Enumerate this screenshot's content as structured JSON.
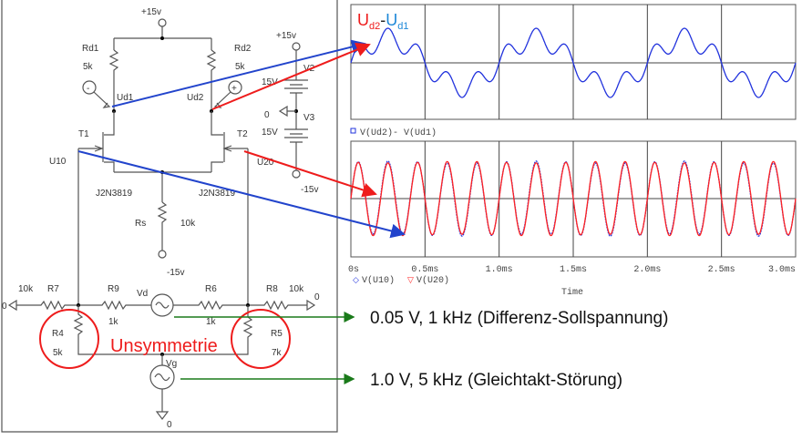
{
  "schematic": {
    "supply_top": "+15v",
    "rd1": {
      "name": "Rd1",
      "value": "5k"
    },
    "rd2": {
      "name": "Rd2",
      "value": "5k"
    },
    "node_ud1": "Ud1",
    "node_ud2": "Ud2",
    "probe_minus": "-",
    "probe_plus": "+",
    "t1": "T1",
    "t2": "T2",
    "u10": "U10",
    "u20": "U20",
    "t1_model": "J2N3819",
    "t2_model": "J2N3819",
    "rs": {
      "name": "Rs",
      "value": "10k"
    },
    "rs_supply": "-15v",
    "v2": {
      "name": "V2",
      "value": "15V",
      "supply": "+15v"
    },
    "v3": {
      "name": "V3",
      "value": "15V",
      "supply": "-15v"
    },
    "gnd_mid": "0",
    "r7": {
      "name": "R7",
      "value": "10k"
    },
    "r9": {
      "name": "R9",
      "value": "1k"
    },
    "vd": "Vd",
    "r6": {
      "name": "R6",
      "value": "1k"
    },
    "r8": {
      "name": "R8",
      "value": "10k"
    },
    "gnd_left": "0",
    "gnd_right": "0",
    "r4": {
      "name": "R4",
      "value": "5k"
    },
    "r5": {
      "name": "R5",
      "value": "7k"
    },
    "vg": "Vg",
    "gnd_bottom": "0",
    "asymmetry_label": "Unsymmetrie"
  },
  "annotations": {
    "vd_note": "0.05 V, 1 kHz (Differenz-Sollspannung)",
    "vg_note": "1.0 V, 5 kHz (Gleichtakt-Störung)"
  },
  "colors": {
    "red": "#ee1c1c",
    "blue": "#2244cc",
    "light_blue": "#1e88d8",
    "green": "#1a7a1a",
    "trace_blue": "#2233dd",
    "trace_red": "#ff2222"
  },
  "chart_data": [
    {
      "type": "line",
      "title_parts": {
        "a": "U",
        "a_sub": "d2",
        "dash": "-",
        "b": "U",
        "b_sub": "d1"
      },
      "legend": [
        "V(Ud2)- V(Ud1)"
      ],
      "xlim": [
        0,
        3.0
      ],
      "x_unit": "ms",
      "grid": true,
      "series": [
        {
          "name": "V(Ud2)- V(Ud1)",
          "components": [
            {
              "freq_khz": 1,
              "rel_amp": 0.7
            },
            {
              "freq_khz": 5,
              "rel_amp": 0.3
            }
          ]
        }
      ]
    },
    {
      "type": "line",
      "xlabel": "Time",
      "x_ticks": [
        "0s",
        "0.5ms",
        "1.0ms",
        "1.5ms",
        "2.0ms",
        "2.5ms",
        "3.0ms"
      ],
      "xlim": [
        0,
        3.0
      ],
      "x_unit": "ms",
      "grid": true,
      "legend": [
        "V(U10)",
        "V(U20)"
      ],
      "series": [
        {
          "name": "V(U10)",
          "components": [
            {
              "freq_khz": 5,
              "rel_amp": 1.0
            },
            {
              "freq_khz": 1,
              "rel_amp": 0.03
            }
          ]
        },
        {
          "name": "V(U20)",
          "components": [
            {
              "freq_khz": 5,
              "rel_amp": 1.0
            },
            {
              "freq_khz": 1,
              "rel_amp": -0.02
            }
          ]
        }
      ]
    }
  ]
}
